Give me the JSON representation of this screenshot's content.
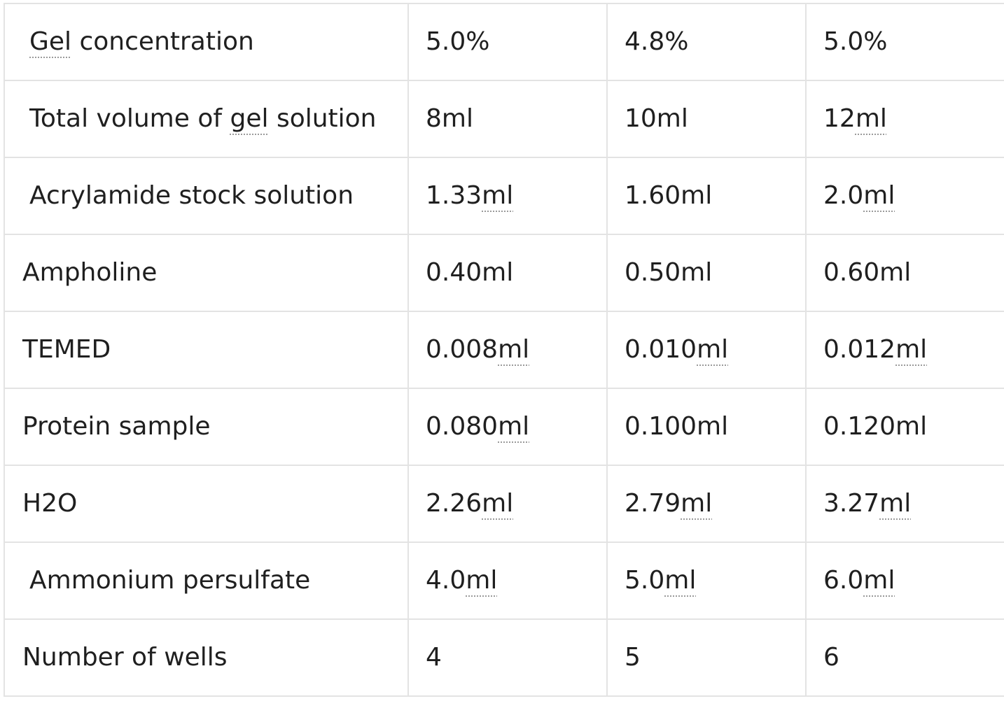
{
  "rows": [
    {
      "label_pre": "",
      "label_u": "Gel",
      "label_post": " concentration",
      "indent": true,
      "cells": [
        {
          "pre": "5.0%",
          "u": "",
          "post": ""
        },
        {
          "pre": "4.8%",
          "u": "",
          "post": ""
        },
        {
          "pre": "5.0%",
          "u": "",
          "post": ""
        }
      ]
    },
    {
      "label_pre": "Total volume of ",
      "label_u": "gel",
      "label_post": " solution",
      "indent": true,
      "cells": [
        {
          "pre": "8ml",
          "u": "",
          "post": ""
        },
        {
          "pre": "10ml",
          "u": "",
          "post": ""
        },
        {
          "pre": "12",
          "u": "ml",
          "post": ""
        }
      ]
    },
    {
      "label_pre": "Acrylamide stock solution",
      "label_u": "",
      "label_post": "",
      "indent": true,
      "cells": [
        {
          "pre": "1.33",
          "u": "ml",
          "post": ""
        },
        {
          "pre": "1.60ml",
          "u": "",
          "post": ""
        },
        {
          "pre": "2.0",
          "u": "ml",
          "post": ""
        }
      ]
    },
    {
      "label_pre": "Ampholine",
      "label_u": "",
      "label_post": "",
      "indent": false,
      "cells": [
        {
          "pre": "0.40ml",
          "u": "",
          "post": ""
        },
        {
          "pre": "0.50ml",
          "u": "",
          "post": ""
        },
        {
          "pre": "0.60ml",
          "u": "",
          "post": ""
        }
      ]
    },
    {
      "label_pre": "TEMED",
      "label_u": "",
      "label_post": "",
      "indent": false,
      "cells": [
        {
          "pre": "0.008",
          "u": "ml",
          "post": ""
        },
        {
          "pre": "0.010",
          "u": "ml",
          "post": ""
        },
        {
          "pre": "0.012",
          "u": "ml",
          "post": ""
        }
      ]
    },
    {
      "label_pre": "Protein sample",
      "label_u": "",
      "label_post": "",
      "indent": false,
      "cells": [
        {
          "pre": "0.080",
          "u": "ml",
          "post": ""
        },
        {
          "pre": "0.100ml",
          "u": "",
          "post": ""
        },
        {
          "pre": "0.120ml",
          "u": "",
          "post": ""
        }
      ]
    },
    {
      "label_pre": "H2O",
      "label_u": "",
      "label_post": "",
      "indent": false,
      "cells": [
        {
          "pre": "2.26",
          "u": "ml",
          "post": ""
        },
        {
          "pre": "2.79",
          "u": "ml",
          "post": ""
        },
        {
          "pre": "3.27",
          "u": "ml",
          "post": ""
        }
      ]
    },
    {
      "label_pre": "Ammonium persulfate",
      "label_u": "",
      "label_post": "",
      "indent": true,
      "cells": [
        {
          "pre": "4.0",
          "u": "ml",
          "post": ""
        },
        {
          "pre": "5.0",
          "u": "ml",
          "post": ""
        },
        {
          "pre": "6.0",
          "u": "ml",
          "post": ""
        }
      ]
    },
    {
      "label_pre": "Number of wells",
      "label_u": "",
      "label_post": "",
      "indent": false,
      "cells": [
        {
          "pre": "4",
          "u": "",
          "post": ""
        },
        {
          "pre": "5",
          "u": "",
          "post": ""
        },
        {
          "pre": "6",
          "u": "",
          "post": ""
        }
      ]
    }
  ]
}
